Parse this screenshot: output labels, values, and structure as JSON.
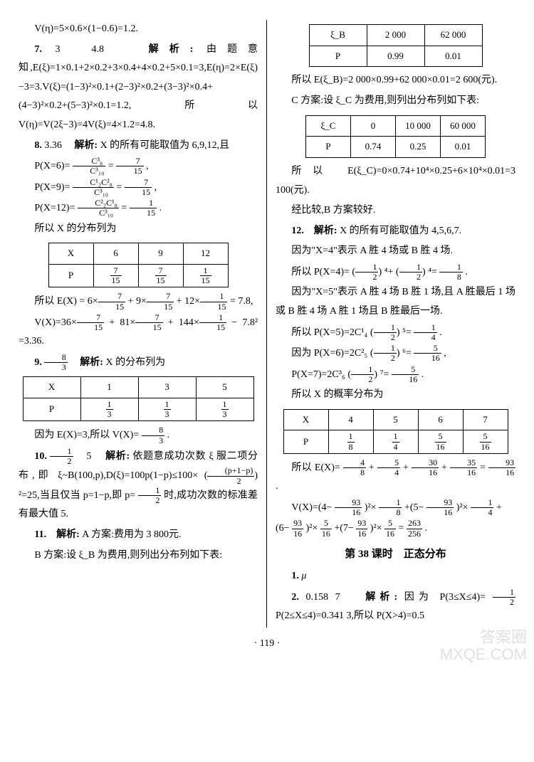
{
  "left": {
    "l1": "V(η)=5×0.6×(1−0.6)=1.2.",
    "q7": "7.",
    "q7a": "3　4.8　",
    "q7_label": "解析:",
    "q7b": "由题意知,E(ξ)=1×0.1+2×0.2+3×0.4+4×0.2+5×0.1=3,E(η)=2×E(ξ)−3=3.V(ξ)=(1−3)²×0.1+(2−3)²×0.2+(3−3)²×0.4+(4−3)²×0.2+(5−3)²×0.1=1.2,所以V(η)=V(2ξ−3)=4V(ξ)=4×1.2=4.8.",
    "q8": "8.",
    "q8a": "3.36　",
    "q8_label": "解析:",
    "q8b": "X 的所有可能取值为 6,9,12,且",
    "q8_p6a": "P(X=6)=",
    "q8_p6_n": "C³₈",
    "q8_p6_d": "C³₁₀",
    "q8_p6b": "=",
    "q8_p6_n2": "7",
    "q8_p6_d2": "15",
    "q8_p6c": ",",
    "q8_p9a": "P(X=9)=",
    "q8_p9_n": "C¹₂C²₈",
    "q8_p9_d": "C³₁₀",
    "q8_p9b": "=",
    "q8_p9_n2": "7",
    "q8_p9_d2": "15",
    "q8_p9c": ",",
    "q8_p12a": "P(X=12)=",
    "q8_p12_n": "C²₂C¹₈",
    "q8_p12_d": "C³₁₀",
    "q8_p12b": "=",
    "q8_p12_n2": "1",
    "q8_p12_d2": "15",
    "q8_p12c": ".",
    "q8_tbl_intro": "所以 X 的分布列为",
    "t8": {
      "h": [
        "X",
        "6",
        "9",
        "12"
      ],
      "r": [
        "P",
        "7/15",
        "7/15",
        "1/15"
      ]
    },
    "q8_e1": "所以 E(X) = 6×",
    "q8_e1b": " + 9×",
    "q8_e1c": " + 12×",
    "q8_e1d": " = 7.8,",
    "q8_v1": "V(X)=36×",
    "q8_v1b": " + 81×",
    "q8_v1c": " + 144×",
    "q8_v1d": " − 7.8² =3.36.",
    "q9": "9.",
    "q9a_n": "8",
    "q9a_d": "3",
    "q9_label": "　解析:",
    "q9b": "X 的分布列为",
    "t9": {
      "h": [
        "X",
        "1",
        "3",
        "5"
      ],
      "r": [
        "P",
        "1/3",
        "1/3",
        "1/3"
      ]
    },
    "q9_c": "因为 E(X)=3,所以 V(X)=",
    "q9_c_n": "8",
    "q9_c_d": "3",
    "q9_c2": ".",
    "q10": "10.",
    "q10a_n": "1",
    "q10a_d": "2",
    "q10a2": "　5　",
    "q10_label": "解析:",
    "q10b": "依题意成功次数 ξ 服二项分布,即 ξ~B(100,p),D(ξ)=100p(1−p)≤100×",
    "q10b_n": "(p+1−p)",
    "q10b_d": "2",
    "q10b2": "²=25,当且仅当 p=1−p,即 p=",
    "q10c_n": "1",
    "q10c_d": "2",
    "q10c": "时,成功次数的标准差有最大值 5.",
    "q11": "11.　解析:",
    "q11a": "A 方案:费用为 3 800元.",
    "q11b": "B 方案:设 ξ_B 为费用,则列出分布列如下表:"
  },
  "right": {
    "tb": {
      "h": [
        "ξ_B",
        "2 000",
        "62 000"
      ],
      "r": [
        "P",
        "0.99",
        "0.01"
      ]
    },
    "r1": "所以 E(ξ_B)=2 000×0.99+62 000×0.01=2 600(元).",
    "r2": "C 方案:设 ξ_C 为费用,则列出分布列如下表:",
    "tc": {
      "h": [
        "ξ_C",
        "0",
        "10 000",
        "60 000"
      ],
      "r": [
        "P",
        "0.74",
        "0.25",
        "0.01"
      ]
    },
    "r3": "所以 E(ξ_C)=0×0.74+10⁴×0.25+6×10⁴×0.01=3 100(元).",
    "r4": "经比较,B 方案较好.",
    "q12": "12.　解析:",
    "q12a": "X 的所有可能取值为 4,5,6,7.",
    "q12b": "因为\"X=4\"表示 A 胜 4 场或 B 胜 4 场.",
    "q12c1": "所以 P(X=4)=",
    "q12c_n": "1",
    "q12c_d": "2",
    "q12c2": "⁴+",
    "q12c3": "⁴=",
    "q12c_n2": "1",
    "q12c_d2": "8",
    "q12c4": ".",
    "q12d": "因为\"X=5\"表示 A 胜 4 场 B 胜 1 场,且 A 胜最后 1 场或 B 胜 4 场 A 胜 1 场且 B 胜最后一场.",
    "q12e1": "所以 P(X=5)=2C¹₄",
    "q12e2": "⁵=",
    "q12e_n": "1",
    "q12e_d": "4",
    "q12e3": ".",
    "q12f1": "因为 P(X=6)=2C²₅",
    "q12f2": "⁶=",
    "q12f_n": "5",
    "q12f_d": "16",
    "q12f3": ",",
    "q12g1": "P(X=7)=2C³₆",
    "q12g2": "⁷=",
    "q12g_n": "5",
    "q12g_d": "16",
    "q12g3": ".",
    "q12h": "所以 X 的概率分布为",
    "t12": {
      "h": [
        "X",
        "4",
        "5",
        "6",
        "7"
      ],
      "r": [
        "P",
        "1/8",
        "1/4",
        "5/16",
        "5/16"
      ]
    },
    "q12i1": "所以 E(X)=",
    "q12i_a_n": "4",
    "q12i_a_d": "8",
    "q12i2": "+",
    "q12i_b_n": "5",
    "q12i_b_d": "4",
    "q12i3": "+",
    "q12i_c_n": "30",
    "q12i_c_d": "16",
    "q12i4": "+",
    "q12i_d_n": "35",
    "q12i_d_d": "16",
    "q12i5": "=",
    "q12i_e_n": "93",
    "q12i_e_d": "16",
    "q12i6": ".",
    "q12j1": "V(X)=(4−",
    "q12j_n": "93",
    "q12j_d": "16",
    "q12j2": ")²×",
    "q12j_a_n": "1",
    "q12j_a_d": "8",
    "q12j3": "+(5−",
    "q12j4": ")²×",
    "q12j_b_n": "1",
    "q12j_b_d": "4",
    "q12j5": "+",
    "q12k1": "(6−",
    "q12k2": ")²×",
    "q12k_a_n": "5",
    "q12k_a_d": "16",
    "q12k3": "+(7−",
    "q12k4": ")²×",
    "q12k5": "=",
    "q12k_r_n": "263",
    "q12k_r_d": "256",
    "q12k6": ".",
    "sec38": "第 38 课时　正态分布",
    "p1": "1.",
    "p1a": "μ",
    "p2": "2.",
    "p2a": "0.158 7　",
    "p2_label": "解析:",
    "p2b": "因为 P(3≤X≤4)=",
    "p2c_n": "1",
    "p2c_d": "2",
    "p2c": "P(2≤X≤4)=0.341 3,所以 P(X>4)=0.5"
  },
  "pagenum": "· 119 ·",
  "watermark1": "答案圈",
  "watermark2": "MXQE.COM"
}
